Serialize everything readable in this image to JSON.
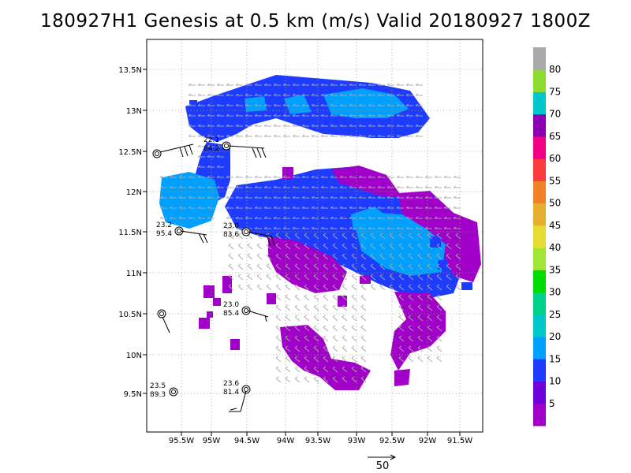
{
  "title": "180927H1 Genesis at 0.5 km (m/s) Valid 20180927 1800Z",
  "lat_labels": [
    "13.5N",
    "13N",
    "12.5N",
    "12N",
    "11.5N",
    "11N",
    "10.5N",
    "10N",
    "9.5N"
  ],
  "lon_labels": [
    "95.5W",
    "95W",
    "94.5W",
    "94W",
    "93.5W",
    "93W",
    "92.5W",
    "92W",
    "91.5W"
  ],
  "colorbar": {
    "labels": [
      "5",
      "10",
      "15",
      "20",
      "25",
      "30",
      "35",
      "40",
      "45",
      "50",
      "55",
      "60",
      "65",
      "70",
      "75",
      "80"
    ],
    "colors": [
      "#a000c8",
      "#6e00dc",
      "#1e3cff",
      "#00a0ff",
      "#00c8c8",
      "#00d28c",
      "#00dc00",
      "#a0e632",
      "#e6dc32",
      "#e6af2d",
      "#f08228",
      "#fa3c3c",
      "#f00082",
      "#8c00b4",
      "#00c8c8",
      "#8cdc32",
      "#aaaaaa"
    ]
  },
  "stations": [
    {
      "id": "st-a",
      "v1": "22.1",
      "v2": "84.2"
    },
    {
      "id": "st-b",
      "v1": "23.2",
      "v2": "95.4"
    },
    {
      "id": "st-c",
      "v1": "23.0",
      "v2": "83.6"
    },
    {
      "id": "st-d",
      "v1": "23.0",
      "v2": "85.4"
    },
    {
      "id": "st-e",
      "v1": "23.5",
      "v2": "89.3"
    },
    {
      "id": "st-f",
      "v1": "23.6",
      "v2": "81.4"
    }
  ],
  "reference_vector": {
    "label": "50"
  }
}
